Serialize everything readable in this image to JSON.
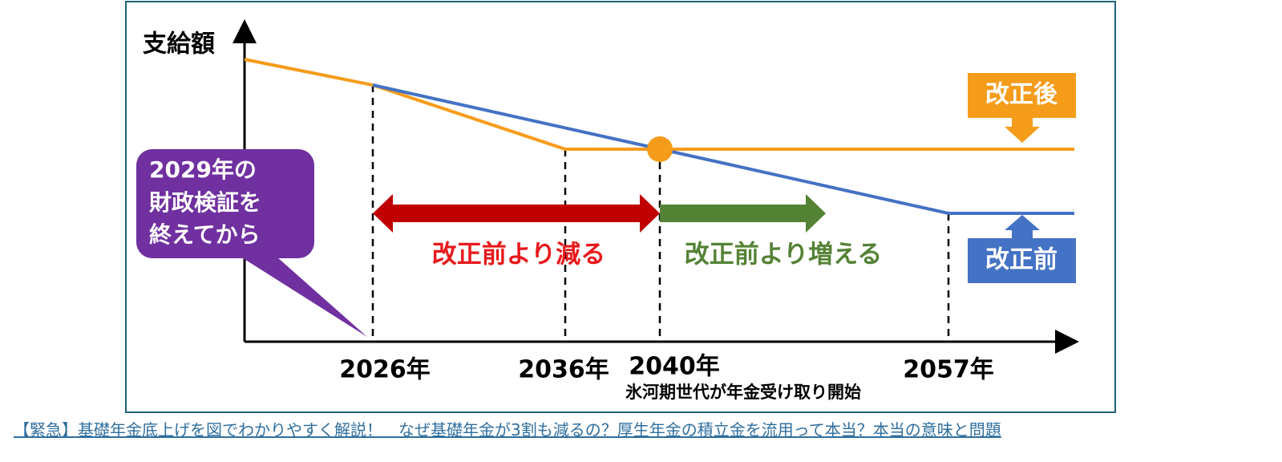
{
  "y_axis_label": "支給額",
  "x_labels": [
    "2026年",
    "2036年",
    "2040年",
    "2057年"
  ],
  "note": "氷河期世代が年金受け取り開始",
  "callout": {
    "lines": [
      "2029年の",
      "財政検証を",
      "終えてから"
    ]
  },
  "arrows": {
    "decrease": "改正前より減る",
    "increase": "改正前より増える"
  },
  "legend": {
    "after": "改正後",
    "before": "改正前"
  },
  "caption": "【緊急】基礎年金底上げを図でわかりやすく解説！　なぜ基礎年金が3割も減るの？厚生年金の積立金を流用って本当？本当の意味と問題"
}
